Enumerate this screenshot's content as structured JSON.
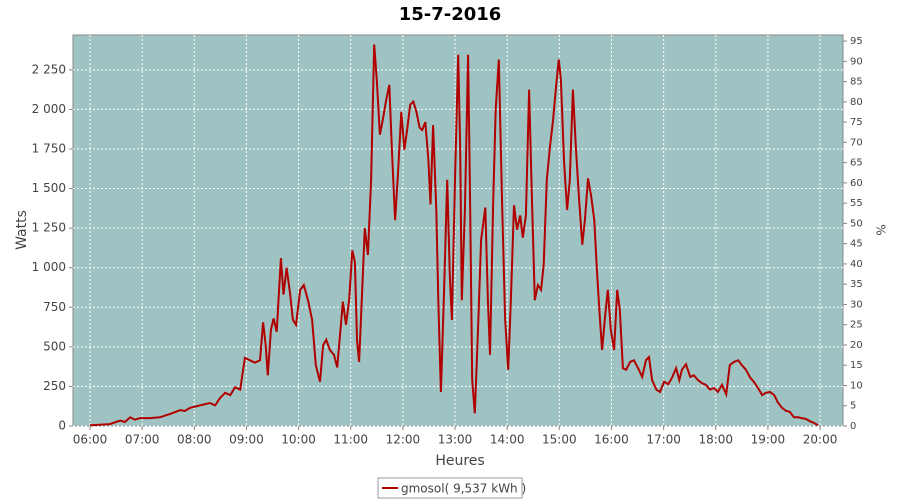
{
  "chart_data": {
    "type": "line",
    "title": "15-7-2016",
    "x_label": "Heures",
    "y_label": "Watts",
    "y2_label": "%",
    "xlim": [
      5.674,
      20.44
    ],
    "xticks": [
      {
        "value": 6,
        "label": "06:00"
      },
      {
        "value": 7,
        "label": "07:00"
      },
      {
        "value": 8,
        "label": "08:00"
      },
      {
        "value": 9,
        "label": "09:00"
      },
      {
        "value": 10,
        "label": "10:00"
      },
      {
        "value": 11,
        "label": "11:00"
      },
      {
        "value": 12,
        "label": "12:00"
      },
      {
        "value": 13,
        "label": "13:00"
      },
      {
        "value": 14,
        "label": "14:00"
      },
      {
        "value": 15,
        "label": "15:00"
      },
      {
        "value": 16,
        "label": "16:00"
      },
      {
        "value": 17,
        "label": "17:00"
      },
      {
        "value": 18,
        "label": "18:00"
      },
      {
        "value": 19,
        "label": "19:00"
      },
      {
        "value": 20,
        "label": "20:00"
      }
    ],
    "ylim": [
      0,
      2470
    ],
    "yticks": [
      0,
      250,
      500,
      750,
      {
        "value": 1000,
        "label": "1 000"
      },
      {
        "value": 1250,
        "label": "1 250"
      },
      {
        "value": 1500,
        "label": "1 500"
      },
      {
        "value": 1750,
        "label": "1 750"
      },
      {
        "value": 2000,
        "label": "2 000"
      },
      {
        "value": 2250,
        "label": "2 250"
      }
    ],
    "y2lim": [
      0,
      96.5
    ],
    "y2ticks": [
      0,
      5,
      10,
      15,
      20,
      25,
      30,
      35,
      40,
      45,
      50,
      55,
      60,
      65,
      70,
      75,
      80,
      85,
      90,
      95
    ],
    "grid": true,
    "legend": "bottom",
    "x": [
      6.0,
      6.19,
      6.38,
      6.58,
      6.67,
      6.77,
      6.86,
      6.96,
      7.15,
      7.34,
      7.53,
      7.73,
      7.82,
      7.92,
      8.11,
      8.3,
      8.4,
      8.49,
      8.59,
      8.69,
      8.78,
      8.88,
      8.97,
      9.07,
      9.16,
      9.26,
      9.32,
      9.37,
      9.41,
      9.47,
      9.52,
      9.58,
      9.66,
      9.71,
      9.77,
      9.84,
      9.89,
      9.95,
      10.03,
      10.1,
      10.18,
      10.26,
      10.33,
      10.41,
      10.47,
      10.53,
      10.6,
      10.68,
      10.74,
      10.79,
      10.85,
      10.91,
      10.97,
      11.03,
      11.08,
      11.12,
      11.16,
      11.22,
      11.27,
      11.33,
      11.39,
      11.45,
      11.5,
      11.56,
      11.62,
      11.68,
      11.74,
      11.79,
      11.85,
      11.91,
      11.97,
      12.03,
      12.08,
      12.14,
      12.2,
      12.26,
      12.32,
      12.37,
      12.43,
      12.49,
      12.53,
      12.58,
      12.64,
      12.68,
      12.73,
      12.79,
      12.85,
      12.9,
      12.94,
      13.0,
      13.06,
      13.1,
      13.13,
      13.19,
      13.25,
      13.29,
      13.33,
      13.38,
      13.44,
      13.5,
      13.58,
      13.63,
      13.67,
      13.73,
      13.78,
      13.84,
      13.9,
      13.96,
      14.02,
      14.07,
      14.13,
      14.19,
      14.25,
      14.3,
      14.36,
      14.42,
      14.47,
      14.53,
      14.59,
      14.65,
      14.7,
      14.76,
      14.82,
      14.88,
      14.94,
      14.99,
      15.03,
      15.09,
      15.15,
      15.2,
      15.26,
      15.32,
      15.38,
      15.44,
      15.49,
      15.55,
      15.61,
      15.67,
      15.72,
      15.78,
      15.82,
      15.88,
      15.93,
      15.99,
      16.05,
      16.11,
      16.16,
      16.22,
      16.28,
      16.36,
      16.43,
      16.51,
      16.59,
      16.66,
      16.72,
      16.78,
      16.86,
      16.93,
      17.01,
      17.09,
      17.16,
      17.24,
      17.3,
      17.35,
      17.43,
      17.51,
      17.58,
      17.66,
      17.74,
      17.81,
      17.89,
      17.97,
      18.04,
      18.12,
      18.2,
      18.27,
      18.35,
      18.43,
      18.5,
      18.58,
      18.66,
      18.73,
      18.81,
      18.89,
      18.96,
      19.04,
      19.12,
      19.19,
      19.27,
      19.35,
      19.42,
      19.5,
      19.58,
      19.65,
      19.73,
      19.81,
      19.88,
      19.96
    ],
    "series": [
      {
        "name": "gmosol( 9,537 kWh )",
        "color": "#b00000",
        "values": [
          5,
          8,
          12,
          35,
          25,
          55,
          40,
          50,
          50,
          55,
          75,
          100,
          95,
          115,
          130,
          145,
          130,
          175,
          210,
          195,
          245,
          230,
          430,
          415,
          400,
          415,
          655,
          510,
          320,
          605,
          680,
          595,
          1060,
          830,
          1000,
          830,
          670,
          640,
          860,
          890,
          795,
          670,
          385,
          280,
          510,
          545,
          480,
          450,
          370,
          560,
          785,
          640,
          800,
          1110,
          1035,
          545,
          405,
          860,
          1250,
          1080,
          1555,
          2410,
          2185,
          1840,
          1945,
          2060,
          2155,
          1745,
          1300,
          1620,
          1985,
          1745,
          1870,
          2030,
          2050,
          1985,
          1885,
          1870,
          1920,
          1680,
          1400,
          1900,
          1365,
          795,
          215,
          860,
          1555,
          955,
          670,
          1555,
          2345,
          1745,
          795,
          1365,
          2345,
          1365,
          290,
          80,
          605,
          1175,
          1380,
          795,
          450,
          1395,
          2000,
          2315,
          1430,
          680,
          355,
          785,
          1395,
          1240,
          1330,
          1190,
          1330,
          2125,
          1490,
          795,
          890,
          860,
          1020,
          1555,
          1760,
          1935,
          2155,
          2315,
          2185,
          1680,
          1365,
          1555,
          2125,
          1745,
          1430,
          1145,
          1300,
          1565,
          1455,
          1300,
          985,
          670,
          480,
          700,
          860,
          605,
          480,
          860,
          735,
          365,
          355,
          405,
          415,
          365,
          310,
          415,
          435,
          290,
          230,
          215,
          280,
          265,
          305,
          365,
          290,
          355,
          390,
          310,
          320,
          290,
          270,
          260,
          230,
          240,
          215,
          260,
          200,
          385,
          405,
          415,
          385,
          355,
          305,
          280,
          240,
          195,
          210,
          215,
          195,
          150,
          115,
          95,
          90,
          55,
          55,
          50,
          45,
          30,
          20,
          5
        ]
      }
    ]
  }
}
